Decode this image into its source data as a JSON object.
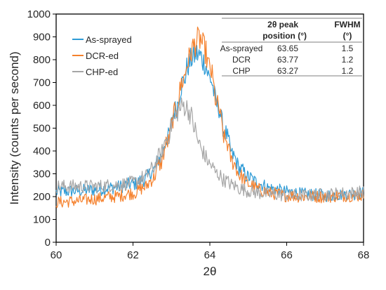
{
  "chart_data": {
    "type": "line",
    "title": "",
    "xlabel": "2θ",
    "ylabel": "Intensity (counts per second)",
    "xlim": [
      60,
      68
    ],
    "ylim": [
      0,
      1000
    ],
    "x_ticks": [
      "60",
      "62",
      "64",
      "66",
      "68"
    ],
    "y_ticks": [
      "0",
      "100",
      "200",
      "300",
      "400",
      "500",
      "600",
      "700",
      "800",
      "900",
      "1000"
    ],
    "grid": false,
    "legend_position": "top-left",
    "series": [
      {
        "name": "As-sprayed",
        "color": "#2E9BD6",
        "x": [
          60.0,
          60.5,
          61.0,
          61.5,
          62.0,
          62.3,
          62.5,
          62.7,
          62.9,
          63.1,
          63.3,
          63.45,
          63.55,
          63.65,
          63.75,
          63.85,
          64.0,
          64.2,
          64.4,
          64.6,
          64.8,
          65.0,
          65.3,
          65.6,
          66.0,
          66.5,
          67.0,
          67.5,
          68.0
        ],
        "y": [
          220,
          225,
          230,
          240,
          255,
          275,
          310,
          370,
          460,
          580,
          700,
          780,
          810,
          825,
          815,
          790,
          720,
          600,
          480,
          380,
          320,
          285,
          255,
          235,
          220,
          210,
          205,
          210,
          215
        ]
      },
      {
        "name": "DCR-ed",
        "color": "#F5812D",
        "x": [
          60.0,
          60.5,
          61.0,
          61.5,
          62.0,
          62.3,
          62.5,
          62.7,
          62.9,
          63.1,
          63.3,
          63.45,
          63.55,
          63.65,
          63.75,
          63.85,
          64.0,
          64.2,
          64.4,
          64.6,
          64.8,
          65.0,
          65.3,
          65.6,
          66.0,
          66.5,
          67.0,
          67.5,
          68.0
        ],
        "y": [
          175,
          180,
          190,
          200,
          215,
          240,
          275,
          340,
          440,
          570,
          710,
          800,
          850,
          880,
          890,
          850,
          760,
          600,
          450,
          350,
          290,
          255,
          230,
          215,
          205,
          200,
          200,
          205,
          205
        ]
      },
      {
        "name": "CHP-ed",
        "color": "#A6A6A6",
        "x": [
          60.0,
          60.5,
          61.0,
          61.5,
          62.0,
          62.3,
          62.5,
          62.7,
          62.9,
          63.05,
          63.2,
          63.3,
          63.4,
          63.5,
          63.6,
          63.7,
          63.8,
          63.9,
          64.0,
          64.2,
          64.4,
          64.6,
          64.8,
          65.0,
          65.3,
          65.6,
          66.0,
          66.5,
          67.0,
          67.5,
          68.0
        ],
        "y": [
          245,
          245,
          245,
          250,
          260,
          285,
          320,
          380,
          460,
          530,
          580,
          600,
          590,
          560,
          500,
          440,
          400,
          370,
          340,
          300,
          270,
          250,
          235,
          225,
          215,
          210,
          205,
          205,
          210,
          215,
          220
        ]
      }
    ],
    "table": {
      "headers": [
        "",
        "2θ peak position (°)",
        "FWHM (°)"
      ],
      "header_lines": [
        [
          "",
          "2θ peak",
          "FWHM"
        ],
        [
          "",
          "position (°)",
          "(°)"
        ]
      ],
      "rows": [
        [
          "As-sprayed",
          "63.65",
          "1.5"
        ],
        [
          "DCR",
          "63.77",
          "1.2"
        ],
        [
          "CHP",
          "63.27",
          "1.2"
        ]
      ]
    }
  }
}
